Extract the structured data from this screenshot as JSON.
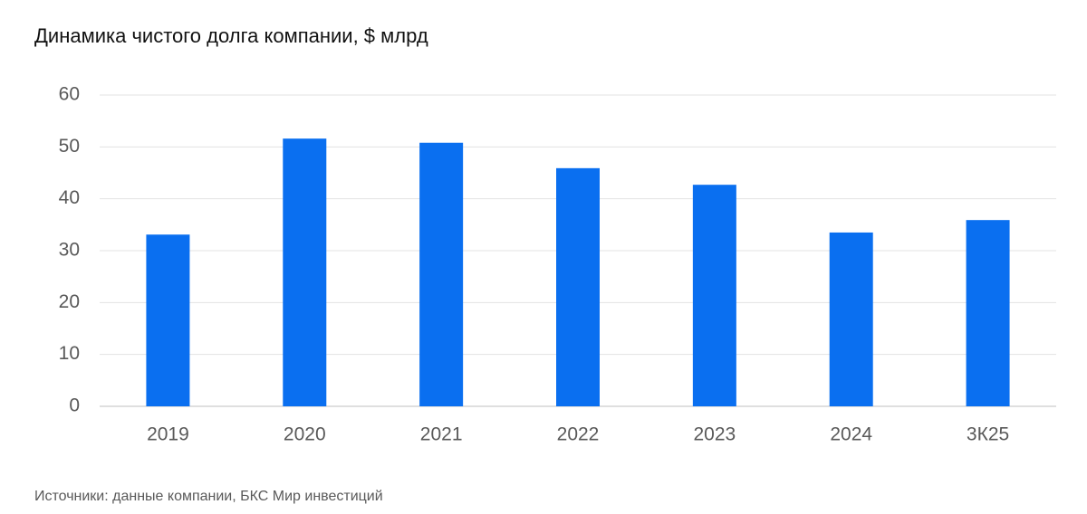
{
  "chart_data": {
    "type": "bar",
    "title": "Динамика чистого долга компании, $ млрд",
    "categories": [
      "2019",
      "2020",
      "2021",
      "2022",
      "2023",
      "2024",
      "3К25"
    ],
    "values": [
      33.1,
      51.6,
      50.8,
      45.9,
      42.7,
      33.5,
      35.9
    ],
    "color": "#0a6ff0",
    "ylim": [
      0,
      60
    ],
    "yticks": [
      0,
      10,
      20,
      30,
      40,
      50,
      60
    ],
    "grid": true,
    "source": "Источники: данные компании, БКС Мир инвестиций"
  }
}
